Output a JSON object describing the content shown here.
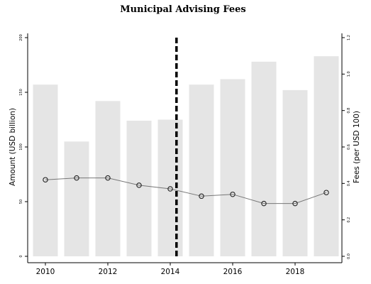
{
  "chart_data": {
    "type": "bar",
    "title": "Municipal Advising Fees",
    "ylabel_left": "Amount (USD billion)",
    "ylabel_right": "Fees (per USD 100)",
    "x": [
      2010,
      2011,
      2012,
      2013,
      2014,
      2015,
      2016,
      2017,
      2018,
      2019
    ],
    "x_ticks": [
      2010,
      2012,
      2014,
      2016,
      2018
    ],
    "x_tick_labels": [
      "2010",
      "2012",
      "2014",
      "2016",
      "2018"
    ],
    "ylim_left": [
      0,
      200
    ],
    "y_ticks_left": [
      "0",
      "50",
      "100",
      "150",
      "200"
    ],
    "ylim_right": [
      0,
      1.2
    ],
    "y_ticks_right": [
      "0.0",
      "0.2",
      "0.4",
      "0.6",
      "0.8",
      "1.0",
      "1.2"
    ],
    "vline_x": 2014.2,
    "grid": false,
    "series": [
      {
        "type": "bar",
        "axis": "left",
        "color": "#e5e5e5",
        "values": [
          157,
          105,
          142,
          124,
          125,
          157,
          162,
          178,
          152,
          183
        ]
      },
      {
        "type": "line",
        "axis": "right",
        "color": "#777777",
        "marker": "hollow-circle",
        "values": [
          0.42,
          0.43,
          0.43,
          0.39,
          0.37,
          0.33,
          0.34,
          0.29,
          0.29,
          0.35
        ]
      }
    ]
  }
}
